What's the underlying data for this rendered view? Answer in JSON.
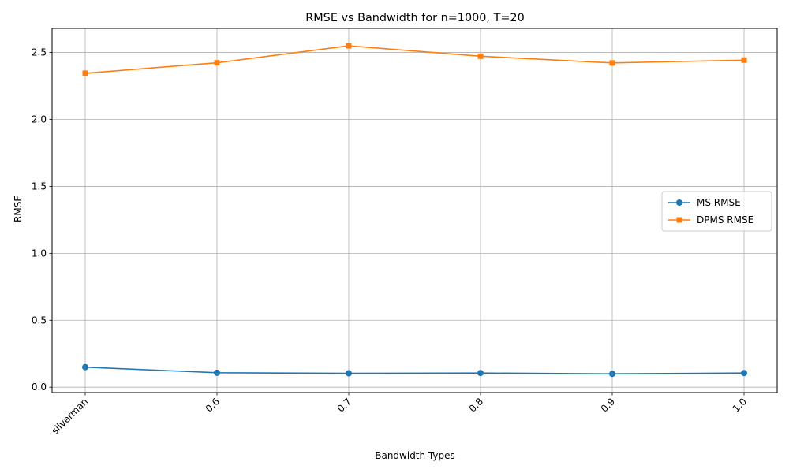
{
  "chart_data": {
    "type": "line",
    "title": "RMSE vs Bandwidth for n=1000, T=20",
    "xlabel": "Bandwidth Types",
    "ylabel": "RMSE",
    "categories": [
      "silverman",
      "0.6",
      "0.7",
      "0.8",
      "0.9",
      "1.0"
    ],
    "ylim": [
      -0.04,
      2.68
    ],
    "yticks": [
      "0.0",
      "0.5",
      "1.0",
      "1.5",
      "2.0",
      "2.5"
    ],
    "grid": true,
    "legend_position": "center-right",
    "series": [
      {
        "name": "MS RMSE",
        "values": [
          0.15,
          0.108,
          0.104,
          0.106,
          0.1,
          0.106
        ],
        "color": "#1f77b4",
        "marker": "circle"
      },
      {
        "name": "DPMS RMSE",
        "values": [
          2.345,
          2.423,
          2.55,
          2.472,
          2.422,
          2.443
        ],
        "color": "#ff7f0e",
        "marker": "square"
      }
    ]
  }
}
